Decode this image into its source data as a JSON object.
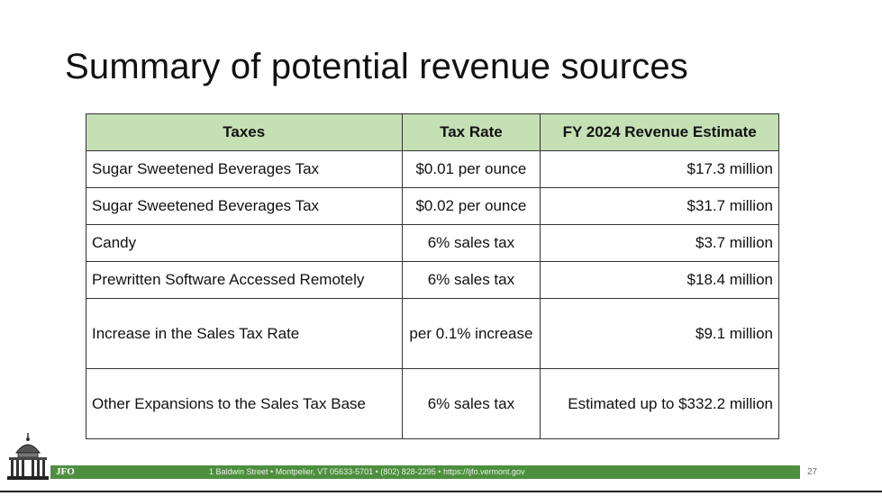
{
  "slide": {
    "title": "Summary of potential revenue sources",
    "page_number": "27"
  },
  "table": {
    "headers": [
      "Taxes",
      "Tax Rate",
      "FY 2024 Revenue Estimate"
    ],
    "rows": [
      {
        "tax": "Sugar Sweetened Beverages Tax",
        "rate": "$0.01 per ounce",
        "estimate": "$17.3 million"
      },
      {
        "tax": "Sugar Sweetened Beverages Tax",
        "rate": "$0.02 per ounce",
        "estimate": "$31.7 million"
      },
      {
        "tax": "Candy",
        "rate": "6% sales tax",
        "estimate": "$3.7 million"
      },
      {
        "tax": "Prewritten Software Accessed Remotely",
        "rate": "6% sales tax",
        "estimate": "$18.4 million"
      },
      {
        "tax": "Increase in the Sales Tax Rate",
        "rate": "per 0.1% increase",
        "estimate": "$9.1 million"
      },
      {
        "tax": "Other Expansions to the Sales Tax Base",
        "rate": "6% sales tax",
        "estimate": "Estimated up to $332.2 million"
      }
    ]
  },
  "footer": {
    "org": "JFO",
    "address": "1 Baldwin Street  •  Montpelier, VT 05633-5701  •  (802) 828-2295  •  https://ljfo.vermont.gov",
    "bar_color": "#4e8f3f",
    "logo_icon": "state-house-dome-icon"
  },
  "colors": {
    "header_fill": "#c5e0b4"
  }
}
